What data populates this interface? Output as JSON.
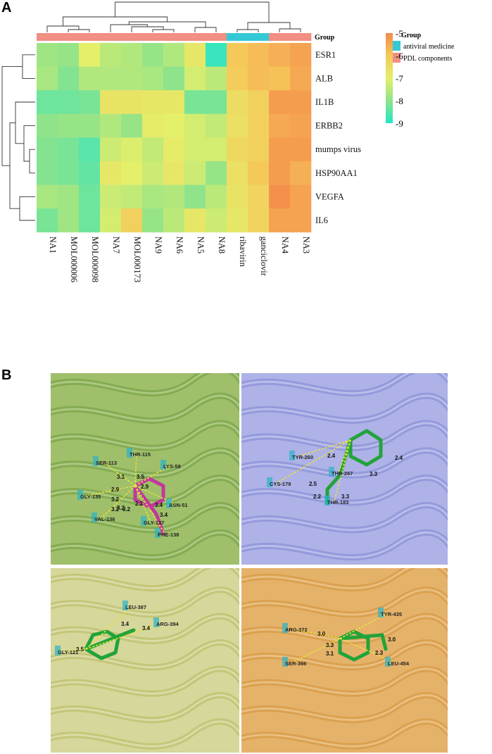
{
  "panel_a_label": "A",
  "panel_b_label": "B",
  "chart_data": {
    "type": "heatmap",
    "group_label": "Group",
    "legend": {
      "title": "Group",
      "entries": [
        {
          "label": "antiviral   medicine",
          "color": "#35c9d6"
        },
        {
          "label": "PDL components",
          "color": "#f08f82"
        }
      ]
    },
    "colorbar": {
      "ticks": [
        "-5",
        "-6",
        "-7",
        "-8",
        "-9"
      ],
      "range": [
        -9,
        -5
      ],
      "colors": [
        "#f58a4a",
        "#f5c85a",
        "#e4ef6a",
        "#8fe38a",
        "#22e6c8"
      ]
    },
    "columns": [
      "NA1",
      "MOL000006",
      "MOL000098",
      "NA7",
      "MOL000173",
      "NA9",
      "NA6",
      "NA5",
      "NA8",
      "ribavirin",
      "ganciclovir",
      "NA4",
      "NA3"
    ],
    "column_groups": [
      "PDL components",
      "PDL components",
      "PDL components",
      "PDL components",
      "PDL components",
      "PDL components",
      "PDL components",
      "PDL components",
      "PDL components",
      "antiviral   medicine",
      "antiviral   medicine",
      "PDL components",
      "PDL components"
    ],
    "rows": [
      "ESR1",
      "ALB",
      "IL1B",
      "ERBB2",
      "mumps virus",
      "HSP90AA1",
      "VEGFA",
      "IL6"
    ],
    "values": [
      [
        -7.8,
        -7.9,
        -7.0,
        -7.5,
        -7.6,
        -7.9,
        -7.6,
        -6.8,
        -8.8,
        -6.0,
        -5.8,
        -5.6,
        -5.4
      ],
      [
        -7.7,
        -8.1,
        -7.6,
        -7.6,
        -7.6,
        -7.7,
        -8.0,
        -7.2,
        -7.5,
        -6.1,
        -5.8,
        -5.9,
        -5.5
      ],
      [
        -8.3,
        -8.3,
        -8.2,
        -6.7,
        -6.7,
        -6.8,
        -6.8,
        -8.2,
        -8.2,
        -6.5,
        -6.2,
        -5.3,
        -5.3
      ],
      [
        -8.0,
        -7.9,
        -7.9,
        -7.6,
        -7.9,
        -6.9,
        -7.0,
        -7.2,
        -7.4,
        -6.6,
        -6.2,
        -5.5,
        -5.4
      ],
      [
        -8.1,
        -8.2,
        -8.5,
        -7.3,
        -7.1,
        -7.4,
        -6.9,
        -7.2,
        -7.2,
        -6.4,
        -6.2,
        -5.3,
        -5.3
      ],
      [
        -8.1,
        -8.2,
        -8.4,
        -6.8,
        -7.0,
        -7.3,
        -6.8,
        -7.3,
        -7.9,
        -6.6,
        -6.0,
        -5.3,
        -5.6
      ],
      [
        -7.7,
        -7.8,
        -8.3,
        -7.3,
        -7.4,
        -7.7,
        -7.6,
        -8.0,
        -7.5,
        -6.7,
        -6.3,
        -5.1,
        -5.4
      ],
      [
        -8.2,
        -7.8,
        -8.3,
        -7.2,
        -6.2,
        -7.9,
        -7.5,
        -6.8,
        -7.3,
        -6.8,
        -6.3,
        -5.4,
        -5.4
      ]
    ]
  },
  "docking": {
    "tiles": [
      {
        "theme": "green",
        "residues": [
          "THR-115",
          "LYS-58",
          "SER-113",
          "ASN-51",
          "GLY-135",
          "GLY-137",
          "VAL-136",
          "PHE-138"
        ],
        "distances": [
          "3.1",
          "3.5",
          "2.9",
          "2.9",
          "3.2",
          "3.2",
          "2.2",
          "3.4",
          "3.4",
          "3.2",
          "3.2"
        ]
      },
      {
        "theme": "blue",
        "residues": [
          "TYR-260",
          "THR-267",
          "CYS-179",
          "THR-183"
        ],
        "distances": [
          "2.4",
          "2.4",
          "3.3",
          "2.5",
          "2.2",
          "3.3"
        ]
      },
      {
        "theme": "yellow",
        "residues": [
          "LEU-387",
          "ARG-394",
          "GLY-121"
        ],
        "distances": [
          "3.4",
          "3.4",
          "3.5"
        ]
      },
      {
        "theme": "orange",
        "residues": [
          "TYR-435",
          "ARG-372",
          "SER-366",
          "LEU-454"
        ],
        "distances": [
          "3.0",
          "3.0",
          "3.3",
          "3.1",
          "2.3"
        ]
      }
    ]
  }
}
